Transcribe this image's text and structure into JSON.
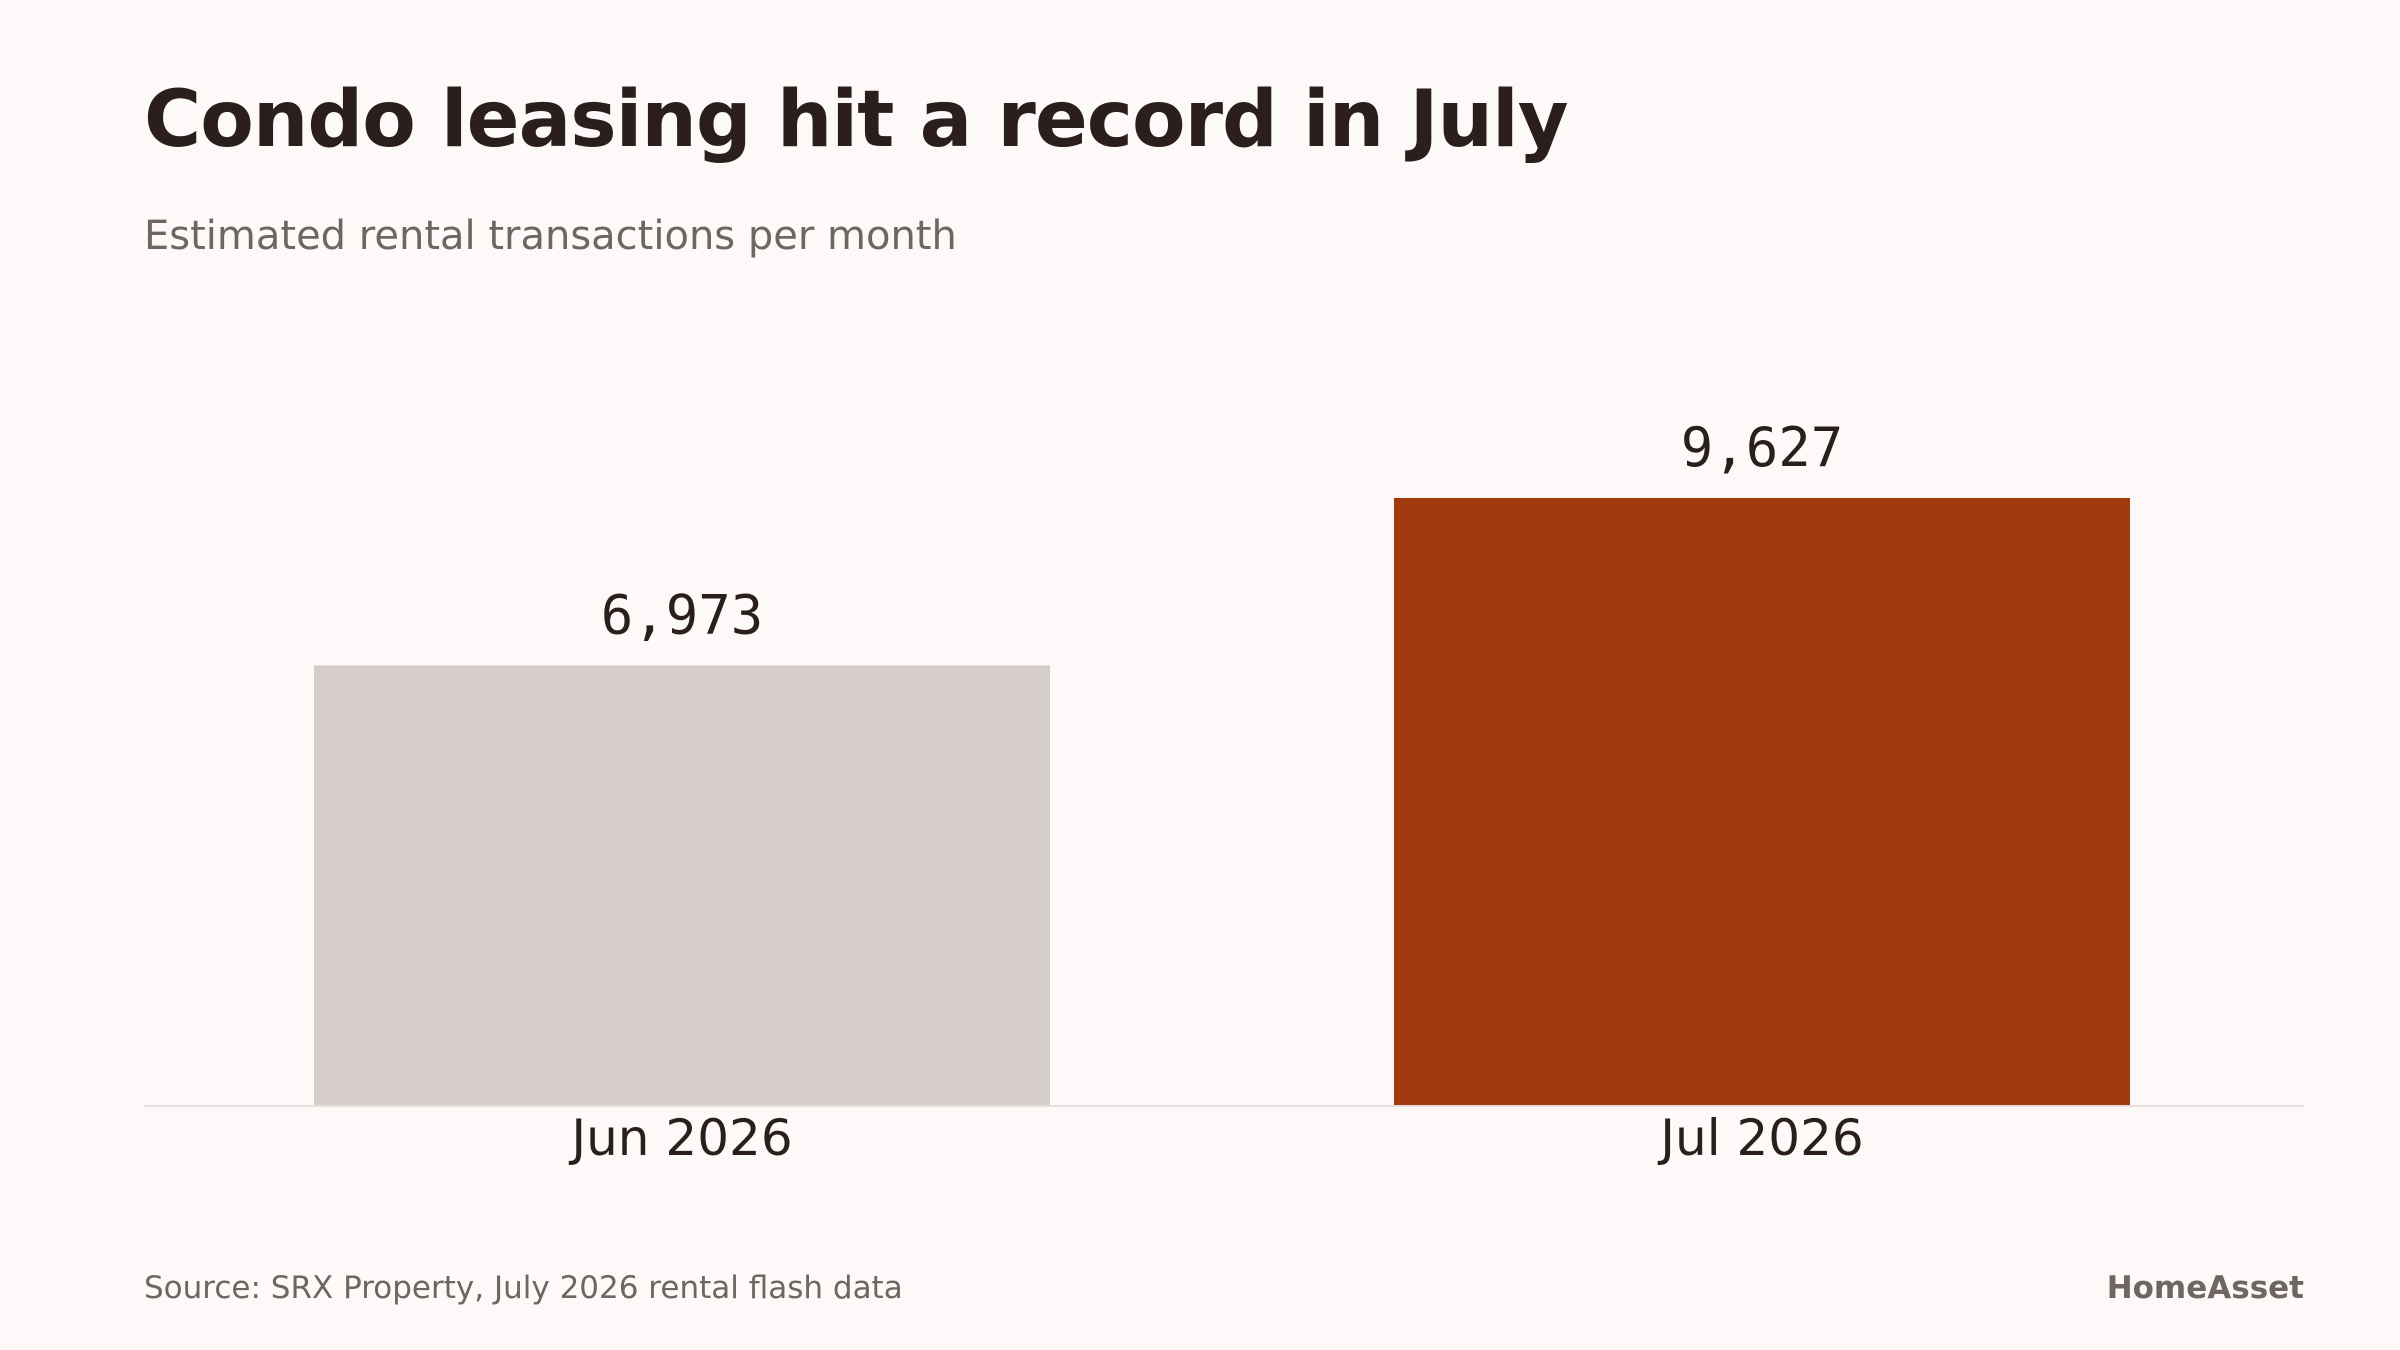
{
  "title": "Condo leasing hit a record in July",
  "subtitle": "Estimated rental transactions per month",
  "source": "Source: SRX Property, July 2026 rental flash data",
  "brand": "HomeAsset",
  "colors": {
    "background": "#fdf9f8",
    "text": "#2b1f1d",
    "muted": "#6f6663",
    "baseline": "#e6dedc",
    "bar_default": "#d6cdcb",
    "bar_highlight": "#a33a0d"
  },
  "chart_data": {
    "type": "bar",
    "categories": [
      "Jun 2026",
      "Jul 2026"
    ],
    "values": [
      6973,
      9627
    ],
    "value_labels": [
      "6,973",
      "9,627"
    ],
    "highlight": [
      false,
      true
    ],
    "title": "Condo leasing hit a record in July",
    "subtitle": "Estimated rental transactions per month",
    "xlabel": "",
    "ylabel": "",
    "grid": false,
    "legend": "none"
  }
}
